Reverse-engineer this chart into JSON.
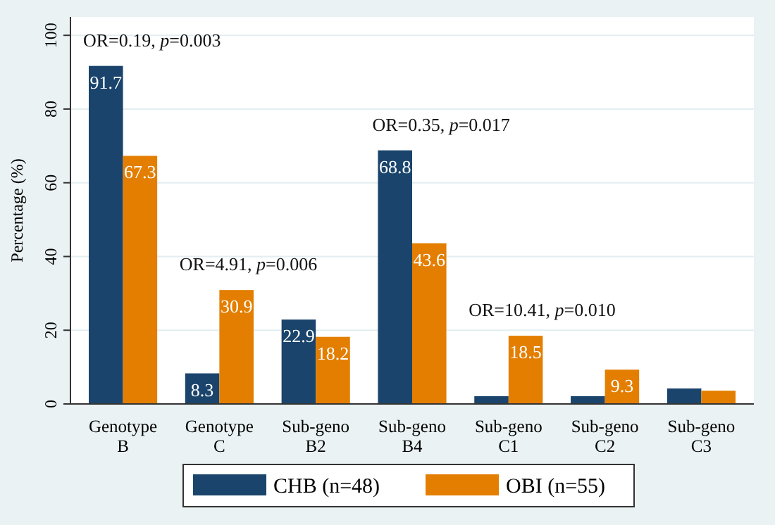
{
  "chart_data": {
    "type": "bar",
    "ylabel": "Percentage (%)",
    "categories": [
      "Genotype B",
      "Genotype C",
      "Sub-geno B2",
      "Sub-geno B4",
      "Sub-geno C1",
      "Sub-geno C2",
      "Sub-geno C3"
    ],
    "series": [
      {
        "name": "CHB (n=48)",
        "color": "#1a446c",
        "values": [
          91.7,
          8.3,
          22.9,
          68.8,
          2.1,
          2.1,
          4.2
        ],
        "value_labels": [
          "91.7",
          "8.3",
          "22.9",
          "68.8",
          null,
          null,
          null
        ]
      },
      {
        "name": "OBI (n=55)",
        "color": "#e37e00",
        "values": [
          67.3,
          30.9,
          18.2,
          43.6,
          18.5,
          9.3,
          3.6
        ],
        "value_labels": [
          "67.3",
          "30.9",
          "18.2",
          "43.6",
          "18.5",
          "9.3",
          null
        ]
      }
    ],
    "ylim": [
      0,
      105
    ],
    "yticks": [
      0,
      20,
      40,
      60,
      80,
      100
    ],
    "grid": "y",
    "legend": "bottom",
    "annotations": [
      "OR=0.19, p=0.003",
      "OR=4.91, p=0.006",
      "OR=0.35, p=0.017",
      "OR=10.41, p=0.010"
    ]
  }
}
